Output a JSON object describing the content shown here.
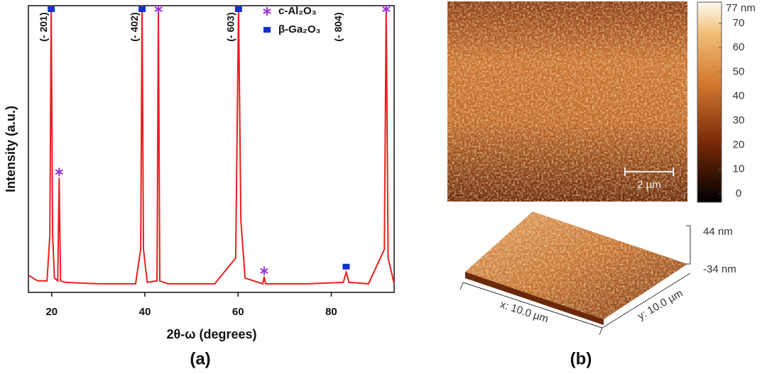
{
  "chart_data": {
    "type": "line",
    "title": "(a)",
    "x_label": "2θ-ω (degrees)",
    "y_label": "Intensity (a.u.)",
    "xlim": [
      15,
      93.5
    ],
    "xticks": [
      20,
      40,
      60,
      80
    ],
    "ylim": [
      0,
      100
    ],
    "x": [
      15,
      17,
      19,
      19.6,
      19.9,
      20.2,
      20.6,
      21.3,
      21.6,
      21.9,
      23,
      30,
      38,
      39.1,
      39.4,
      39.7,
      40.5,
      42.6,
      42.9,
      43.2,
      45,
      55,
      59.5,
      60.1,
      60.6,
      61.5,
      65.3,
      65.6,
      65.9,
      75,
      82.6,
      83.2,
      83.8,
      88,
      91.4,
      91.8,
      92.2,
      93.5
    ],
    "series": [
      {
        "color": "#e8201f",
        "values": [
          6,
          4,
          4,
          20,
          100,
          20,
          5,
          4,
          40,
          4,
          3.5,
          3,
          3,
          15,
          100,
          15,
          3.5,
          4,
          100,
          4,
          3,
          3,
          12,
          100,
          25,
          5,
          3,
          5.5,
          3,
          3,
          3.5,
          7,
          3.5,
          3,
          15,
          100,
          12,
          3
        ]
      }
    ],
    "markers": [
      {
        "name": "c-Al₂O₃",
        "symbol": "star",
        "color": "#9b30d9",
        "x": [
          21.6,
          42.9,
          65.6,
          91.8
        ],
        "values": [
          40,
          100,
          5.5,
          100
        ]
      },
      {
        "name": "β-Ga₂O₃",
        "symbol": "square",
        "color": "#1030d0",
        "x": [
          19.9,
          39.4,
          60.1,
          83.2
        ],
        "values": [
          100,
          100,
          100,
          7
        ]
      }
    ],
    "peak_labels": [
      {
        "text": "(- 201)",
        "x": 19.9
      },
      {
        "text": "(- 402)",
        "x": 39.4
      },
      {
        "text": "(- 603)",
        "x": 60.1
      },
      {
        "text": "(- 804)",
        "x": 83.2
      }
    ]
  },
  "afm": {
    "title": "(b)",
    "scale_bar": "2 µm",
    "colorbar": {
      "lim": [
        -3.5,
        78.7
      ],
      "ticks": [
        0,
        10,
        20,
        30,
        40,
        50,
        60,
        70
      ],
      "max_label": "77 nm"
    },
    "view3d": {
      "z_max": "44 nm",
      "z_min": "-34 nm",
      "x_label": "x: 10.0 µm",
      "y_label": "y: 10.0 µm"
    }
  }
}
